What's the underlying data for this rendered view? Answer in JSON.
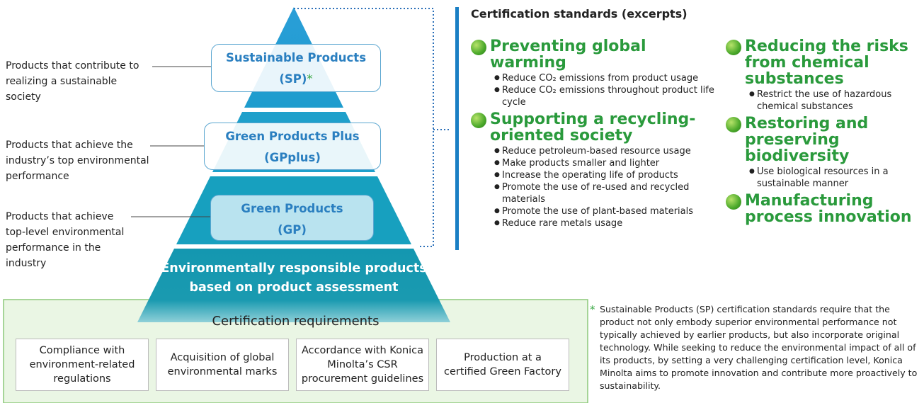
{
  "pyramid": {
    "tiers": [
      {
        "name": "Sustainable Products",
        "abbr": "(SP)",
        "mark": "*",
        "description": "Products that contribute to realizing a sustainable society"
      },
      {
        "name": "Green Products Plus",
        "abbr": "(GPplus)",
        "description": "Products that achieve the industry’s top environmental performance"
      },
      {
        "name": "Green Products",
        "abbr": "(GP)",
        "description": "Products that achieve top-level environmental performance in the industry"
      },
      {
        "name": "Environmentally responsible products based on product assessment"
      }
    ]
  },
  "requirements": {
    "title": "Certification requirements",
    "items": [
      "Compliance with environment-related regulations",
      "Acquisition of global environmental marks",
      "Accordance with Konica Minolta’s CSR procurement guidelines",
      "Production at a certified Green Factory"
    ]
  },
  "standards": {
    "title": "Certification standards (excerpts)",
    "categories": [
      {
        "name": "Preventing global warming",
        "items": [
          "Reduce CO₂ emissions from product usage",
          "Reduce CO₂ emissions throughout product life cycle"
        ]
      },
      {
        "name": "Supporting a recycling-oriented society",
        "items": [
          "Reduce petroleum-based resource usage",
          "Make products smaller and lighter",
          "Increase the operating life of products",
          "Promote the use of re-used and recycled materials",
          "Promote the use of plant-based materials",
          "Reduce rare metals usage"
        ]
      },
      {
        "name": "Reducing the risks from chemical substances",
        "items": [
          "Restrict the use of hazardous chemical substances"
        ]
      },
      {
        "name": "Restoring and preserving biodiversity",
        "items": [
          "Use biological resources in a sustainable manner"
        ]
      },
      {
        "name": "Manufacturing process innovation",
        "items": []
      }
    ]
  },
  "footnote": {
    "mark": "*",
    "text": "Sustainable Products (SP) certification standards require that the product not only embody superior environmental performance not typically achieved by earlier products, but also incorporate original technology. While seeking to reduce the environmental impact of all of its products, by setting a very challenging certification level, Konica Minolta aims to promote innovation and contribute more proactively to sustainability."
  }
}
